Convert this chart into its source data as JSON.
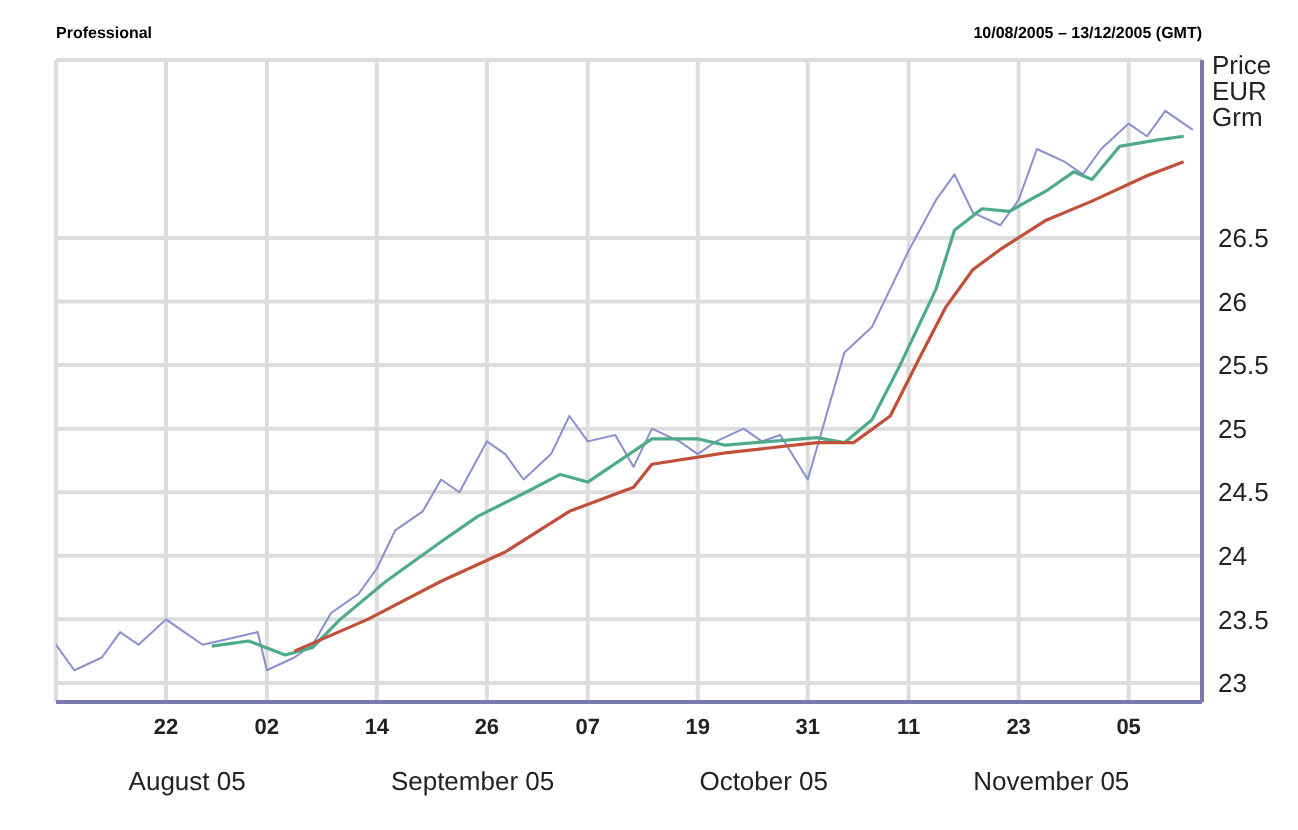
{
  "chart_data": {
    "type": "line",
    "title": "Professional",
    "subtitle": "10/08/2005 – 13/12/2005 (GMT)",
    "ylabel": "Price EUR Grm",
    "annotations": [
      "August 05",
      "September 05",
      "October 05",
      "November 05"
    ],
    "xlim": [
      "2005-08-10",
      "2005-12-13"
    ],
    "xticks": [
      {
        "value": "2005-08-22",
        "label": "22"
      },
      {
        "value": "2005-09-02",
        "label": "02"
      },
      {
        "value": "2005-09-14",
        "label": "14"
      },
      {
        "value": "2005-09-26",
        "label": "26"
      },
      {
        "value": "2005-10-07",
        "label": "07"
      },
      {
        "value": "2005-10-19",
        "label": "19"
      },
      {
        "value": "2005-10-31",
        "label": "31"
      },
      {
        "value": "2005-11-11",
        "label": "11"
      },
      {
        "value": "2005-11-23",
        "label": "23"
      },
      {
        "value": "2005-12-05",
        "label": "05"
      }
    ],
    "ylim": [
      22.85,
      27.9
    ],
    "yticks": [
      23,
      23.5,
      24,
      24.5,
      25,
      25.5,
      26,
      26.5
    ],
    "grid": true,
    "legend": false,
    "marker": "none",
    "series": [
      {
        "color": "#8a8fd0",
        "x": [
          "2005-08-10",
          "2005-08-12",
          "2005-08-15",
          "2005-08-17",
          "2005-08-19",
          "2005-08-22",
          "2005-08-24",
          "2005-08-26",
          "2005-08-29",
          "2005-09-01",
          "2005-09-02",
          "2005-09-05",
          "2005-09-07",
          "2005-09-09",
          "2005-09-12",
          "2005-09-14",
          "2005-09-16",
          "2005-09-19",
          "2005-09-21",
          "2005-09-23",
          "2005-09-26",
          "2005-09-28",
          "2005-09-30",
          "2005-10-03",
          "2005-10-05",
          "2005-10-07",
          "2005-10-10",
          "2005-10-12",
          "2005-10-14",
          "2005-10-17",
          "2005-10-19",
          "2005-10-21",
          "2005-10-24",
          "2005-10-26",
          "2005-10-28",
          "2005-10-31",
          "2005-11-02",
          "2005-11-04",
          "2005-11-07",
          "2005-11-09",
          "2005-11-11",
          "2005-11-14",
          "2005-11-16",
          "2005-11-18",
          "2005-11-21",
          "2005-11-23",
          "2005-11-25",
          "2005-11-28",
          "2005-11-30",
          "2005-12-02",
          "2005-12-05",
          "2005-12-07",
          "2005-12-09",
          "2005-12-12"
        ],
        "values": [
          23.3,
          23.1,
          23.2,
          23.4,
          23.3,
          23.5,
          23.4,
          23.3,
          23.35,
          23.4,
          23.1,
          23.2,
          23.3,
          23.55,
          23.7,
          23.9,
          24.2,
          24.35,
          24.6,
          24.5,
          24.9,
          24.8,
          24.6,
          24.8,
          25.1,
          24.9,
          24.95,
          24.7,
          25.0,
          24.9,
          24.8,
          24.9,
          25.0,
          24.9,
          24.95,
          24.6,
          25.1,
          25.6,
          25.8,
          26.1,
          26.4,
          26.8,
          27.0,
          26.7,
          26.6,
          26.8,
          27.2,
          27.1,
          27.0,
          27.2,
          27.4,
          27.3,
          27.5,
          27.35
        ]
      },
      {
        "color": "#4faa8c",
        "x": [
          "2005-08-27",
          "2005-08-31",
          "2005-09-04",
          "2005-09-07",
          "2005-09-10",
          "2005-09-15",
          "2005-09-21",
          "2005-09-25",
          "2005-09-30",
          "2005-10-04",
          "2005-10-07",
          "2005-10-14",
          "2005-10-19",
          "2005-10-22",
          "2005-11-01",
          "2005-11-04",
          "2005-11-07",
          "2005-11-10",
          "2005-11-14",
          "2005-11-16",
          "2005-11-19",
          "2005-11-22",
          "2005-11-26",
          "2005-11-29",
          "2005-12-01",
          "2005-12-04",
          "2005-12-08",
          "2005-12-11"
        ],
        "values": [
          23.29,
          23.33,
          23.22,
          23.28,
          23.5,
          23.8,
          24.11,
          24.31,
          24.49,
          24.64,
          24.58,
          24.92,
          24.92,
          24.87,
          24.93,
          24.89,
          25.07,
          25.49,
          26.1,
          26.56,
          26.73,
          26.71,
          26.87,
          27.02,
          26.96,
          27.22,
          27.27,
          27.3
        ]
      },
      {
        "color": "#c0503a",
        "x": [
          "2005-09-05",
          "2005-09-13",
          "2005-09-21",
          "2005-09-28",
          "2005-10-05",
          "2005-10-12",
          "2005-10-14",
          "2005-10-22",
          "2005-11-01",
          "2005-11-05",
          "2005-11-09",
          "2005-11-12",
          "2005-11-15",
          "2005-11-18",
          "2005-11-21",
          "2005-11-26",
          "2005-12-01",
          "2005-12-07",
          "2005-12-11"
        ],
        "values": [
          23.25,
          23.5,
          23.8,
          24.03,
          24.35,
          24.54,
          24.72,
          24.81,
          24.89,
          24.89,
          25.1,
          25.53,
          25.95,
          26.25,
          26.41,
          26.64,
          26.79,
          26.99,
          27.1
        ]
      }
    ]
  }
}
